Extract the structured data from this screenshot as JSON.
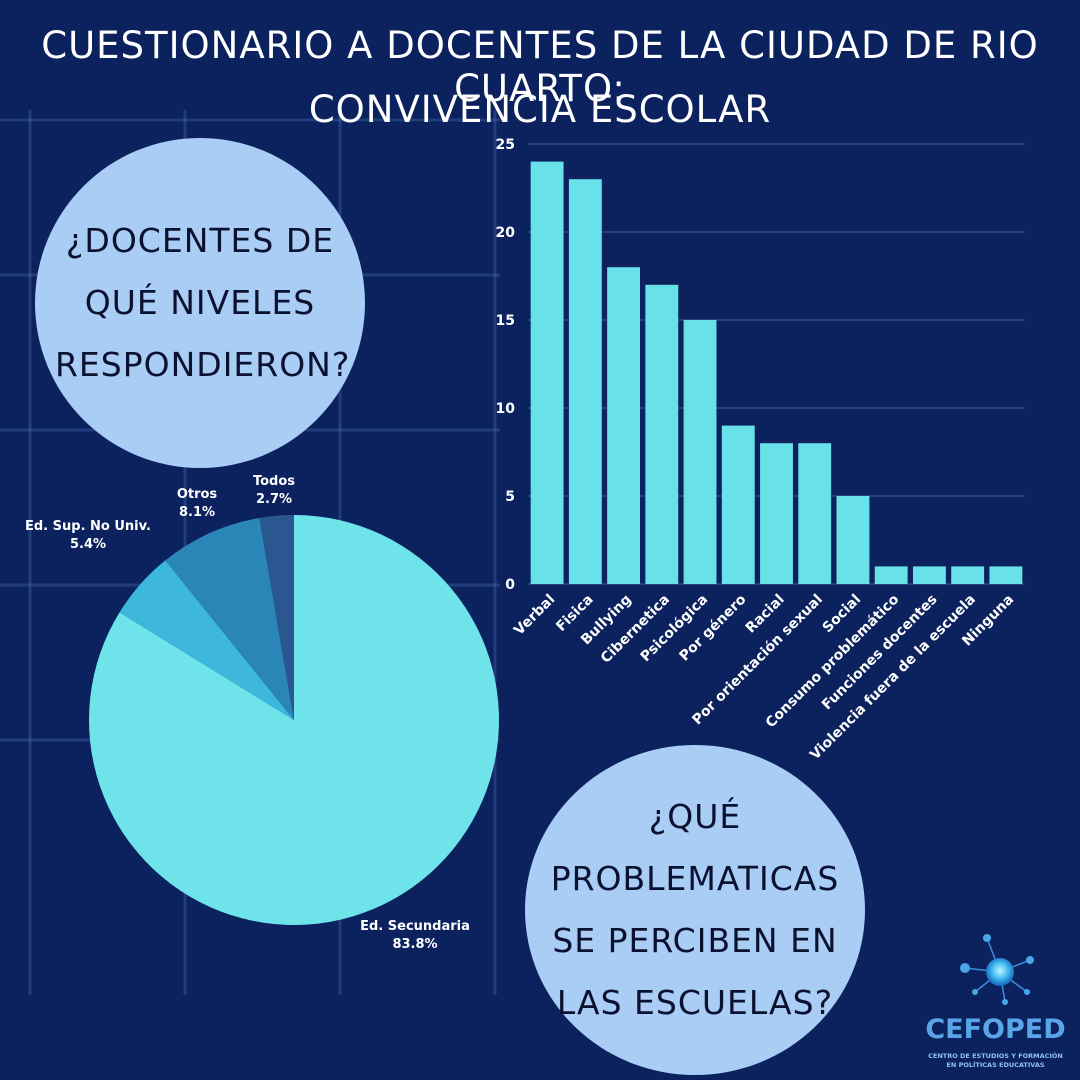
{
  "title": {
    "line1": "CUESTIONARIO A DOCENTES DE LA CIUDAD DE RIO CUARTO:",
    "line2": "CONVIVENCIA ESCOLAR"
  },
  "bubbles": {
    "levels": [
      "¿DOCENTES DE",
      "QUÉ NIVELES",
      "RESPONDIERON?"
    ],
    "problems": [
      "¿QUÉ",
      "PROBLEMATICAS",
      "SE PERCIBEN EN",
      "LAS ESCUELAS?"
    ]
  },
  "colors": {
    "background": "#0b225f",
    "bubble": "#aacdf6",
    "bar": "#69e1e8"
  },
  "chart_data": [
    {
      "type": "pie",
      "slices": [
        {
          "label": "Ed. Secundaria",
          "value": 83.8,
          "display": "83.8%",
          "color": "#6fe3ea"
        },
        {
          "label": "Ed. Sup. No Univ.",
          "value": 5.4,
          "display": "5.4%",
          "color": "#3db8dc"
        },
        {
          "label": "Otros",
          "value": 8.1,
          "display": "8.1%",
          "color": "#2b86b8"
        },
        {
          "label": "Todos",
          "value": 2.7,
          "display": "2.7%",
          "color": "#2b5790"
        }
      ]
    },
    {
      "type": "bar",
      "categories": [
        "Verbal",
        "Fisica",
        "Bullying",
        "Cibernetica",
        "Psicológica",
        "Por género",
        "Racial",
        "Por orientación sexual",
        "Social",
        "Consumo problemático",
        "Funciones docentes",
        "Violencia fuera de la escuela",
        "Ninguna"
      ],
      "values": [
        24,
        23,
        18,
        17,
        15,
        9,
        8,
        8,
        5,
        1,
        1,
        1,
        1
      ],
      "ylim": [
        0,
        25
      ],
      "yticks": [
        0,
        5,
        10,
        15,
        20,
        25
      ],
      "grid": true,
      "color": "#69e1e8"
    }
  ],
  "logo": {
    "name": "CEFOPED",
    "subtitle_line1": "CENTRO DE ESTUDIOS Y FORMACIÓN",
    "subtitle_line2": "EN POLÍTICAS EDUCATIVAS"
  }
}
